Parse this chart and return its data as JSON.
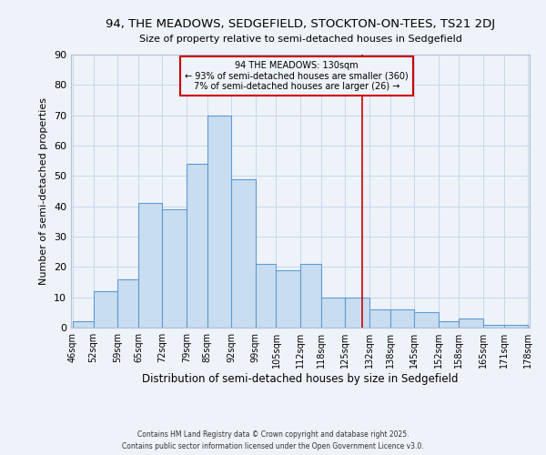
{
  "title": "94, THE MEADOWS, SEDGEFIELD, STOCKTON-ON-TEES, TS21 2DJ",
  "subtitle": "Size of property relative to semi-detached houses in Sedgefield",
  "xlabel": "Distribution of semi-detached houses by size in Sedgefield",
  "ylabel": "Number of semi-detached properties",
  "bin_edges": [
    46,
    52,
    59,
    65,
    72,
    79,
    85,
    92,
    99,
    105,
    112,
    118,
    125,
    132,
    138,
    145,
    152,
    158,
    165,
    171,
    178
  ],
  "bin_labels": [
    "46sqm",
    "52sqm",
    "59sqm",
    "65sqm",
    "72sqm",
    "79sqm",
    "85sqm",
    "92sqm",
    "99sqm",
    "105sqm",
    "112sqm",
    "118sqm",
    "125sqm",
    "132sqm",
    "138sqm",
    "145sqm",
    "152sqm",
    "158sqm",
    "165sqm",
    "171sqm",
    "178sqm"
  ],
  "counts": [
    2,
    12,
    16,
    41,
    39,
    54,
    70,
    49,
    21,
    19,
    21,
    10,
    10,
    6,
    6,
    5,
    2,
    3,
    1,
    1
  ],
  "bar_facecolor": "#c9ddf0",
  "bar_edgecolor": "#5b9bd5",
  "grid_color": "#c8d8ea",
  "background_color": "#eef2f9",
  "vline_x": 130,
  "vline_color": "#cc0000",
  "annotation_title": "94 THE MEADOWS: 130sqm",
  "annotation_line1": "← 93% of semi-detached houses are smaller (360)",
  "annotation_line2": "7% of semi-detached houses are larger (26) →",
  "annotation_box_color": "#cc0000",
  "ylim": [
    0,
    90
  ],
  "yticks": [
    0,
    10,
    20,
    30,
    40,
    50,
    60,
    70,
    80,
    90
  ],
  "footnote1": "Contains HM Land Registry data © Crown copyright and database right 2025.",
  "footnote2": "Contains public sector information licensed under the Open Government Licence v3.0."
}
